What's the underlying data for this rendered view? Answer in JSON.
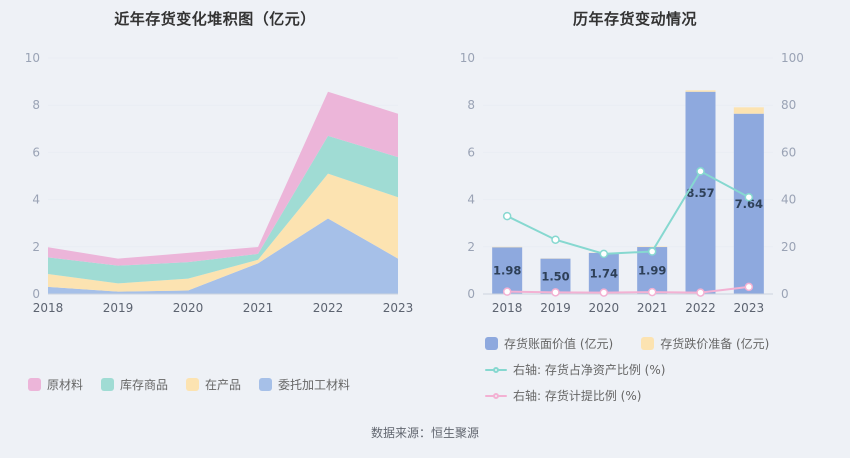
{
  "source": "数据来源：恒生聚源",
  "colors": {
    "page_bg": "#eef1f6",
    "title": "#333333",
    "grid": "#e9edf4",
    "axis_line": "#ccd3de",
    "axis_y_label": "#9aa3b5",
    "axis_x_label": "#5c6370",
    "bar_label": "#2e4058",
    "marker_fill": "#ffffff"
  },
  "chart_data": [
    {
      "type": "area",
      "title": "近年存货变化堆积图（亿元）",
      "stacked": true,
      "categories": [
        "2018",
        "2019",
        "2020",
        "2021",
        "2022",
        "2023"
      ],
      "ylim": [
        0,
        10
      ],
      "yticks": [
        0,
        2,
        4,
        6,
        8,
        10
      ],
      "series": [
        {
          "name": "委托加工材料",
          "color": "#a6c0e8",
          "values": [
            0.3,
            0.1,
            0.15,
            1.3,
            3.2,
            1.5
          ]
        },
        {
          "name": "在产品",
          "color": "#fce3b1",
          "values": [
            0.55,
            0.35,
            0.5,
            0.15,
            1.9,
            2.6
          ]
        },
        {
          "name": "库存商品",
          "color": "#a0dcd4",
          "values": [
            0.7,
            0.75,
            0.7,
            0.25,
            1.6,
            1.7
          ]
        },
        {
          "name": "原材料",
          "color": "#ecb5d9",
          "values": [
            0.43,
            0.3,
            0.39,
            0.29,
            1.87,
            1.84
          ]
        }
      ],
      "legend": [
        {
          "label": "原材料",
          "color": "#ecb5d9",
          "icon": "square"
        },
        {
          "label": "库存商品",
          "color": "#a0dcd4",
          "icon": "square"
        },
        {
          "label": "在产品",
          "color": "#fce3b1",
          "icon": "square"
        },
        {
          "label": "委托加工材料",
          "color": "#a6c0e8",
          "icon": "square"
        }
      ]
    },
    {
      "type": "bar",
      "title": "历年存货变动情况",
      "categories": [
        "2018",
        "2019",
        "2020",
        "2021",
        "2022",
        "2023"
      ],
      "left_ylim": [
        0,
        10
      ],
      "right_ylim": [
        0,
        100
      ],
      "left_yticks": [
        0,
        2,
        4,
        6,
        8,
        10
      ],
      "right_yticks": [
        0,
        20,
        40,
        60,
        80,
        100
      ],
      "series": [
        {
          "name": "存货账面价值 (亿元)",
          "kind": "bar",
          "color": "#8ea9de",
          "values": [
            1.98,
            1.5,
            1.74,
            1.99,
            8.57,
            7.64
          ],
          "show_labels": true
        },
        {
          "name": "存货跌价准备 (亿元)",
          "kind": "bar",
          "color": "#fce3b1",
          "values": [
            0.02,
            0.01,
            0.01,
            0.02,
            0.06,
            0.27
          ]
        },
        {
          "name": "右轴: 存货占净资产比例 (%)",
          "kind": "line",
          "axis": "right",
          "color": "#86d8d0",
          "values": [
            33,
            23,
            17,
            18,
            52,
            41
          ]
        },
        {
          "name": "右轴: 存货计提比例 (%)",
          "kind": "line",
          "axis": "right",
          "color": "#f3b1d3",
          "values": [
            1.0,
            0.7,
            0.6,
            0.8,
            0.6,
            3.0
          ]
        }
      ],
      "legend": [
        {
          "label": "存货账面价值 (亿元)",
          "color": "#8ea9de",
          "icon": "square"
        },
        {
          "label": "存货跌价准备 (亿元)",
          "color": "#fce3b1",
          "icon": "square"
        },
        {
          "label": "右轴: 存货占净资产比例 (%)",
          "color": "#86d8d0",
          "icon": "line"
        },
        {
          "label": "右轴: 存货计提比例 (%)",
          "color": "#f3b1d3",
          "icon": "line"
        }
      ],
      "legend_rows": [
        [
          0,
          1
        ],
        [
          2
        ],
        [
          3
        ]
      ]
    }
  ]
}
